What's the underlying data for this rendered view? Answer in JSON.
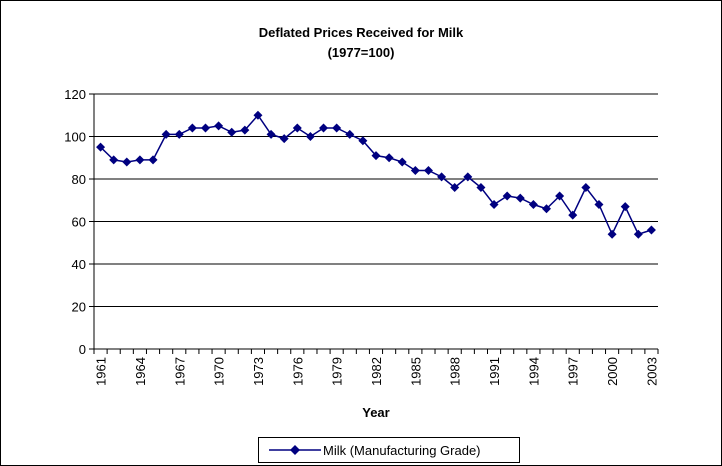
{
  "chart_data": {
    "type": "line",
    "title": "Deflated Prices Received for Milk",
    "subtitle": "(1977=100)",
    "xlabel": "Year",
    "ylabel": "",
    "ylim": [
      0,
      120
    ],
    "yticks": [
      0,
      20,
      40,
      60,
      80,
      100,
      120
    ],
    "xticks": [
      "1961",
      "1964",
      "1967",
      "1970",
      "1973",
      "1976",
      "1979",
      "1982",
      "1985",
      "1988",
      "1991",
      "1994",
      "1997",
      "2000",
      "2003"
    ],
    "grid": true,
    "legend_position": "bottom",
    "colors": {
      "series": "#000080",
      "grid": "#000000",
      "frame": "#000000"
    },
    "series": [
      {
        "name": "Milk (Manufacturing Grade)",
        "x": [
          1961,
          1962,
          1963,
          1964,
          1965,
          1966,
          1967,
          1968,
          1969,
          1970,
          1971,
          1972,
          1973,
          1974,
          1975,
          1976,
          1977,
          1978,
          1979,
          1980,
          1981,
          1982,
          1983,
          1984,
          1985,
          1986,
          1987,
          1988,
          1989,
          1990,
          1991,
          1992,
          1993,
          1994,
          1995,
          1996,
          1997,
          1998,
          1999,
          2000,
          2001,
          2002,
          2003
        ],
        "values": [
          95,
          89,
          88,
          89,
          89,
          101,
          101,
          104,
          104,
          105,
          102,
          103,
          110,
          101,
          99,
          104,
          100,
          104,
          104,
          101,
          98,
          91,
          90,
          88,
          84,
          84,
          81,
          76,
          81,
          76,
          68,
          72,
          71,
          68,
          66,
          72,
          63,
          76,
          68,
          54,
          67,
          54,
          56
        ]
      }
    ]
  }
}
